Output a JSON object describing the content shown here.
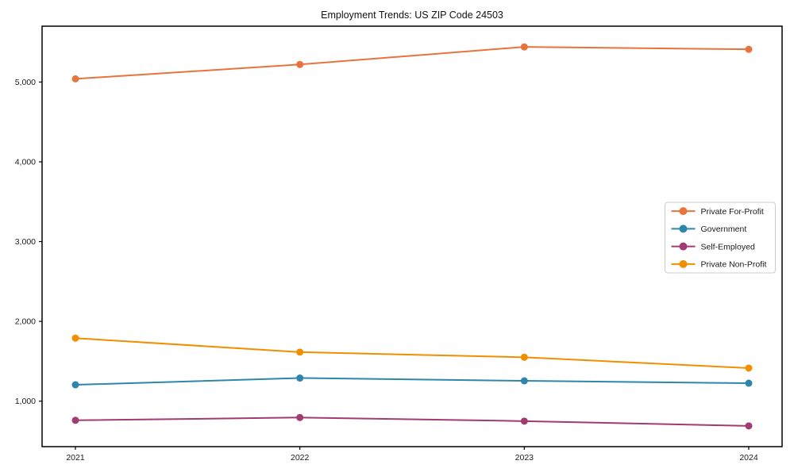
{
  "chart_data": {
    "type": "line",
    "title": "Employment Trends: US ZIP Code 24503",
    "xlabel": "",
    "ylabel": "",
    "grid": false,
    "legend_position": "center-right",
    "categories": [
      "2021",
      "2022",
      "2023",
      "2024"
    ],
    "y_ticks": [
      1000,
      2000,
      3000,
      4000,
      5000
    ],
    "y_tick_labels": [
      "1,000",
      "2,000",
      "3,000",
      "4,000",
      "5,000"
    ],
    "ylim": [
      430,
      5700
    ],
    "frame_color": "#000000",
    "text_color": "#1a1a1a",
    "series": [
      {
        "name": "Private For-Profit",
        "color": "#E8743B",
        "values": [
          5040,
          5220,
          5440,
          5410
        ]
      },
      {
        "name": "Government",
        "color": "#2E86AB",
        "values": [
          1205,
          1290,
          1255,
          1225
        ]
      },
      {
        "name": "Self-Employed",
        "color": "#A23B72",
        "values": [
          760,
          795,
          750,
          690
        ]
      },
      {
        "name": "Private Non-Profit",
        "color": "#F18F01",
        "values": [
          1790,
          1615,
          1550,
          1415
        ]
      }
    ]
  }
}
